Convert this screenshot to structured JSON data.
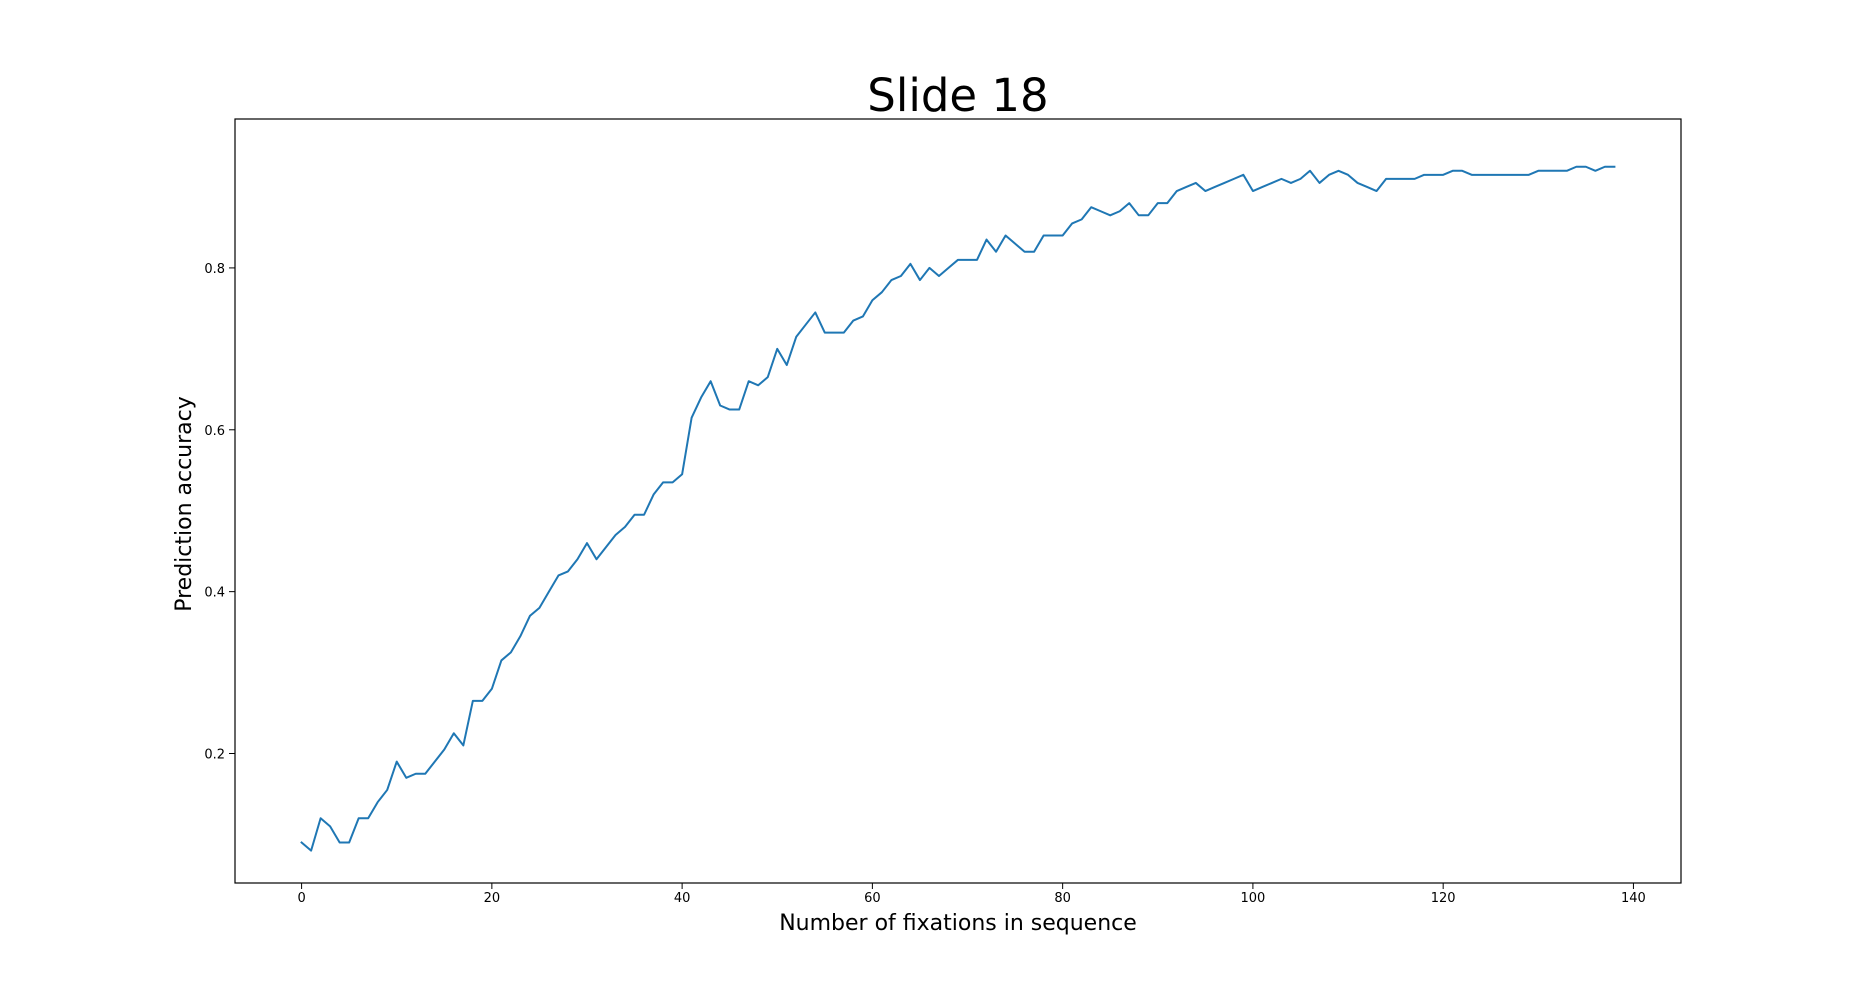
{
  "chart_data": {
    "type": "line",
    "title": "Slide 18",
    "xlabel": "Number of fixations in sequence",
    "ylabel": "Prediction accuracy",
    "xlim": [
      -7,
      145
    ],
    "ylim": [
      0.04,
      0.984
    ],
    "xticks": [
      0,
      20,
      40,
      60,
      80,
      100,
      120,
      140
    ],
    "xtick_labels": [
      "0",
      "20",
      "40",
      "60",
      "80",
      "100",
      "120",
      "140"
    ],
    "yticks": [
      0.2,
      0.4,
      0.6,
      0.8
    ],
    "ytick_labels": [
      "0.2",
      "0.4",
      "0.6",
      "0.8"
    ],
    "grid": false,
    "series": [
      {
        "color": "#1f77b4",
        "x": [
          0,
          1,
          2,
          3,
          4,
          5,
          6,
          7,
          8,
          9,
          10,
          11,
          12,
          13,
          14,
          15,
          16,
          17,
          18,
          19,
          20,
          21,
          22,
          23,
          24,
          25,
          26,
          27,
          28,
          29,
          30,
          31,
          32,
          33,
          34,
          35,
          36,
          37,
          38,
          39,
          40,
          41,
          42,
          43,
          44,
          45,
          46,
          47,
          48,
          49,
          50,
          51,
          52,
          53,
          54,
          55,
          56,
          57,
          58,
          59,
          60,
          61,
          62,
          63,
          64,
          65,
          66,
          67,
          68,
          69,
          70,
          71,
          72,
          73,
          74,
          75,
          76,
          77,
          78,
          79,
          80,
          81,
          82,
          83,
          84,
          85,
          86,
          87,
          88,
          89,
          90,
          91,
          92,
          93,
          94,
          95,
          96,
          97,
          98,
          99,
          100,
          101,
          102,
          103,
          104,
          105,
          106,
          107,
          108,
          109,
          110,
          111,
          112,
          113,
          114,
          115,
          116,
          117,
          118,
          119,
          120,
          121,
          122,
          123,
          124,
          125,
          126,
          127,
          128,
          129,
          130,
          131,
          132,
          133,
          134,
          135,
          136,
          137,
          138
        ],
        "values": [
          0.09,
          0.08,
          0.12,
          0.11,
          0.09,
          0.09,
          0.12,
          0.12,
          0.14,
          0.155,
          0.19,
          0.17,
          0.175,
          0.175,
          0.19,
          0.205,
          0.225,
          0.21,
          0.265,
          0.265,
          0.28,
          0.315,
          0.325,
          0.345,
          0.37,
          0.38,
          0.4,
          0.42,
          0.425,
          0.44,
          0.46,
          0.44,
          0.455,
          0.47,
          0.48,
          0.495,
          0.495,
          0.52,
          0.535,
          0.535,
          0.545,
          0.615,
          0.64,
          0.66,
          0.63,
          0.625,
          0.625,
          0.66,
          0.655,
          0.665,
          0.7,
          0.68,
          0.715,
          0.73,
          0.745,
          0.72,
          0.72,
          0.72,
          0.735,
          0.74,
          0.76,
          0.77,
          0.785,
          0.79,
          0.805,
          0.785,
          0.8,
          0.79,
          0.8,
          0.81,
          0.81,
          0.81,
          0.835,
          0.82,
          0.84,
          0.83,
          0.82,
          0.82,
          0.84,
          0.84,
          0.84,
          0.855,
          0.86,
          0.875,
          0.87,
          0.865,
          0.87,
          0.88,
          0.865,
          0.865,
          0.88,
          0.88,
          0.895,
          0.9,
          0.905,
          0.895,
          0.9,
          0.905,
          0.91,
          0.915,
          0.895,
          0.9,
          0.905,
          0.91,
          0.905,
          0.91,
          0.92,
          0.905,
          0.915,
          0.92,
          0.915,
          0.905,
          0.9,
          0.895,
          0.91,
          0.91,
          0.91,
          0.91,
          0.915,
          0.915,
          0.915,
          0.92,
          0.92,
          0.915,
          0.915,
          0.915,
          0.915,
          0.915,
          0.915,
          0.915,
          0.92,
          0.92,
          0.92,
          0.92,
          0.925,
          0.925,
          0.92,
          0.925,
          0.925
        ]
      }
    ]
  }
}
